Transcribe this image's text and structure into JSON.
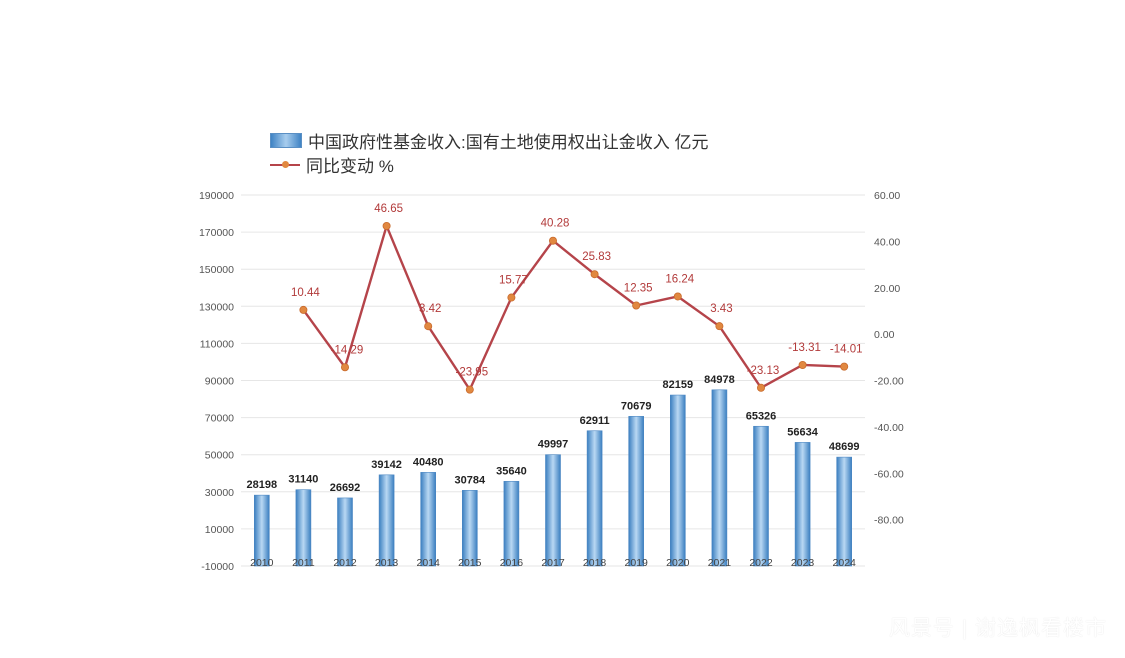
{
  "chart_data": {
    "type": "bar",
    "categories": [
      "2010",
      "2011",
      "2012",
      "2013",
      "2014",
      "2015",
      "2016",
      "2017",
      "2018",
      "2019",
      "2020",
      "2021",
      "2022",
      "2023",
      "2024"
    ],
    "series": [
      {
        "name": "中国政府性基金收入:国有土地使用权出让金收入 亿元",
        "type": "bar",
        "axis": "left",
        "values": [
          28198,
          31140,
          26692,
          39142,
          40480,
          30784,
          35640,
          49997,
          62911,
          70679,
          82159,
          84978,
          65326,
          56634,
          48699
        ],
        "labels": [
          "28198",
          "31140",
          "26692",
          "39142",
          "40480",
          "30784",
          "35640",
          "49997",
          "62911",
          "70679",
          "82159",
          "84978",
          "65326",
          "56634",
          "48699"
        ],
        "color": "#4a8fd0"
      },
      {
        "name": "同比变动 %",
        "type": "line",
        "axis": "right",
        "values": [
          null,
          10.44,
          -14.29,
          46.65,
          3.42,
          -23.95,
          15.77,
          40.28,
          25.83,
          12.35,
          16.24,
          3.43,
          -23.13,
          -13.31,
          -14.01
        ],
        "labels": [
          "",
          "10.44",
          "-14.29",
          "46.65",
          "3.42",
          "-23.95",
          "15.77",
          "40.28",
          "25.83",
          "12.35",
          "16.24",
          "3.43",
          "-23.13",
          "-13.31",
          "-14.01"
        ],
        "color": "#b5444a",
        "marker_color": "#e18840"
      }
    ],
    "left_axis": {
      "range": [
        -10000,
        190000
      ],
      "ticks": [
        "190000",
        "170000",
        "150000",
        "130000",
        "110000",
        "90000",
        "70000",
        "50000",
        "30000",
        "10000",
        "-10000"
      ]
    },
    "right_axis": {
      "range": [
        -100,
        60
      ],
      "ticks": [
        "60.00",
        "40.00",
        "20.00",
        "0.00",
        "-20.00",
        "-40.00",
        "-60.00",
        "-80.00"
      ]
    },
    "x_ticks": [
      "2010",
      "2011",
      "2012",
      "2013",
      "2014",
      "2015",
      "2016",
      "2017",
      "2018",
      "2019",
      "2020",
      "2021",
      "2022",
      "2023",
      "2024"
    ],
    "grid": true,
    "legend_position": "top-left"
  },
  "watermark": "风景号 | 谢逸枫看楼市"
}
